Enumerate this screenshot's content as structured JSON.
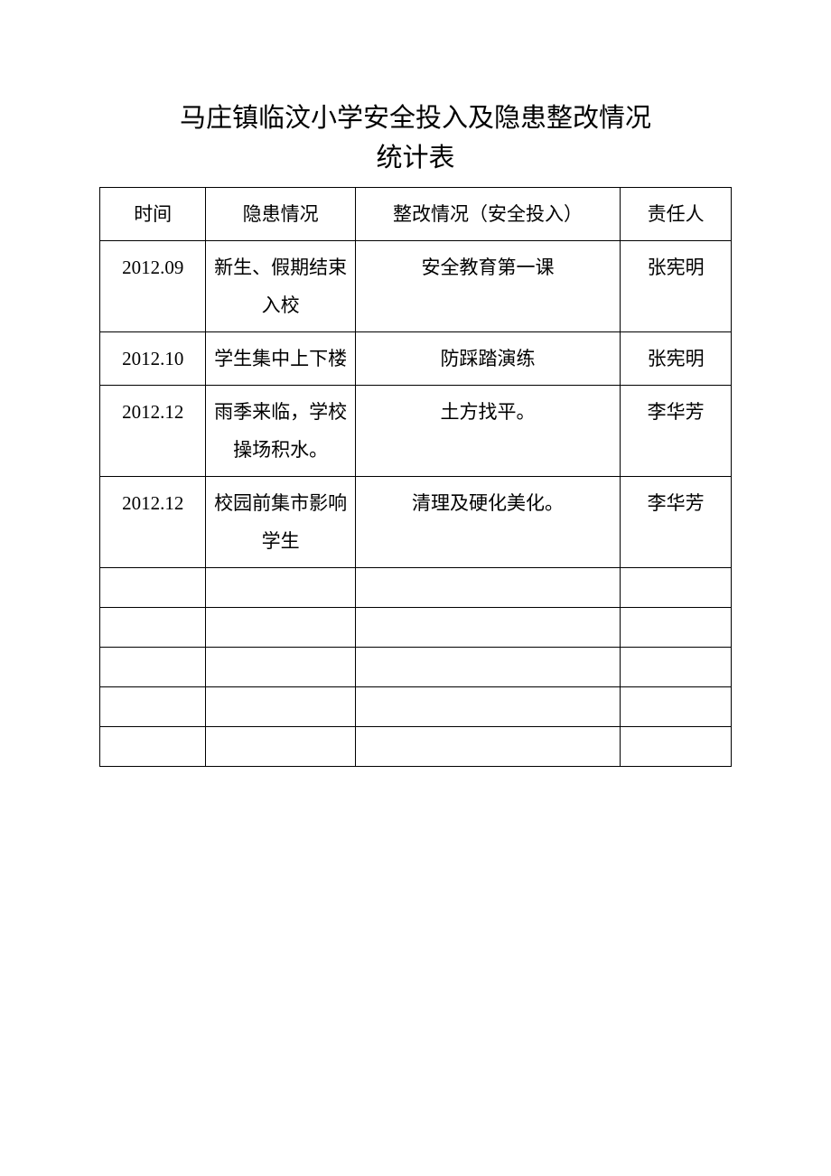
{
  "title": {
    "line1": "马庄镇临汶小学安全投入及隐患整改情况",
    "line2": "统计表"
  },
  "table": {
    "headers": {
      "time": "时间",
      "hazard": "隐患情况",
      "rectify": "整改情况（安全投入）",
      "person": "责任人"
    },
    "rows": [
      {
        "time": "2012.09",
        "hazard": "新生、假期结束入校",
        "rectify": "安全教育第一课",
        "person": "张宪明"
      },
      {
        "time": "2012.10",
        "hazard": "学生集中上下楼",
        "rectify": "防踩踏演练",
        "person": "张宪明"
      },
      {
        "time": "2012.12",
        "hazard": "雨季来临，学校操场积水。",
        "rectify": "土方找平。",
        "person": "李华芳"
      },
      {
        "time": "2012.12",
        "hazard": "校园前集市影响学生",
        "rectify": "清理及硬化美化。",
        "person": "李华芳"
      }
    ],
    "empty_row_count": 5,
    "column_widths": {
      "time": 110,
      "hazard": 155,
      "rectify": 275,
      "person": 115
    },
    "colors": {
      "border": "#000000",
      "text": "#000000",
      "background": "#ffffff"
    },
    "typography": {
      "title_fontsize": 29,
      "cell_fontsize": 21,
      "font_family": "SimSun"
    }
  }
}
